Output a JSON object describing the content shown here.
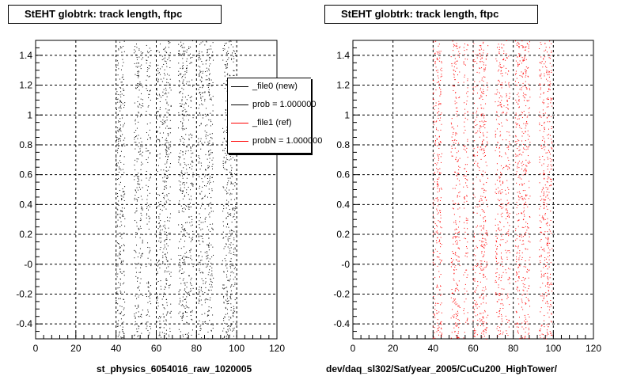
{
  "chart_data": [
    {
      "type": "scatter",
      "title": "StEHT globtrk: track length, ftpc",
      "xlabel": "st_physics_6054016_raw_1020005",
      "ylabel": "",
      "xlim": [
        0,
        120
      ],
      "ylim": [
        -0.5,
        1.5
      ],
      "x_ticks": [
        "0",
        "20",
        "40",
        "60",
        "80",
        "100",
        "120"
      ],
      "y_ticks": [
        "-0.4",
        "-0.2",
        "-0",
        "0.2",
        "0.4",
        "0.6",
        "0.8",
        "1",
        "1.2",
        "1.4"
      ],
      "grid": true,
      "legend_position": "top-right",
      "point_color": "#000000",
      "point_bands_x": [
        41,
        43,
        50,
        52,
        56,
        61,
        64,
        66,
        72,
        74,
        77,
        82,
        85,
        87,
        94,
        96,
        98
      ],
      "legend": [
        {
          "label": "_file0 (new)",
          "color": "#000000"
        },
        {
          "label": "prob = 1.000000",
          "color": "#000000"
        },
        {
          "label": "_file1 (ref)",
          "color": "#ff0000"
        },
        {
          "label": "probN = 1.000000",
          "color": "#ff0000"
        }
      ]
    },
    {
      "type": "scatter",
      "title": "StEHT globtrk: track length, ftpc",
      "xlabel": "dev/daq_sl302/Sat/year_2005/CuCu200_HighTower/",
      "ylabel": "",
      "xlim": [
        0,
        120
      ],
      "ylim": [
        -0.5,
        1.5
      ],
      "x_ticks": [
        "0",
        "20",
        "40",
        "60",
        "80",
        "100",
        "120"
      ],
      "y_ticks": [
        "-0.4",
        "-0.2",
        "-0",
        "0.2",
        "0.4",
        "0.6",
        "0.8",
        "1",
        "1.2",
        "1.4"
      ],
      "grid": true,
      "point_color": "#ff0000",
      "point_bands_x": [
        41,
        43,
        50,
        52,
        56,
        61,
        64,
        66,
        72,
        74,
        77,
        82,
        85,
        87,
        94,
        96,
        98
      ]
    }
  ]
}
